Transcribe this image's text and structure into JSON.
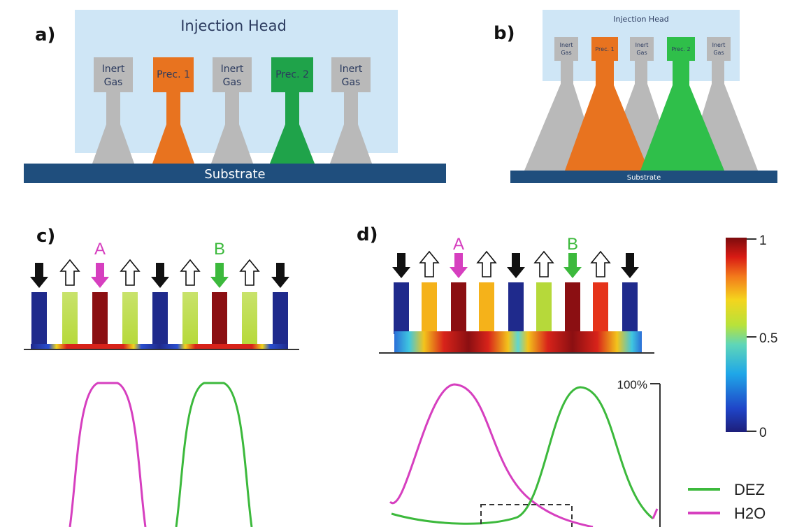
{
  "panels": {
    "a": {
      "tag": "a)",
      "head_label": "Injection Head",
      "substrate_label": "Substrate",
      "inlets": [
        {
          "line1": "Inert",
          "line2": "Gas",
          "kind": "inert"
        },
        {
          "line1": "Prec. 1",
          "line2": "",
          "kind": "prec1"
        },
        {
          "line1": "Inert",
          "line2": "Gas",
          "kind": "inert"
        },
        {
          "line1": "Prec. 2",
          "line2": "",
          "kind": "prec2"
        },
        {
          "line1": "Inert",
          "line2": "Gas",
          "kind": "inert"
        }
      ]
    },
    "b": {
      "tag": "b)",
      "head_label": "Injection Head",
      "substrate_label": "Substrate",
      "inlets": [
        {
          "line1": "Inert",
          "line2": "Gas",
          "kind": "inert"
        },
        {
          "line1": "Prec. 1",
          "line2": "",
          "kind": "prec1"
        },
        {
          "line1": "Inert",
          "line2": "Gas",
          "kind": "inert"
        },
        {
          "line1": "Prec. 2",
          "line2": "",
          "kind": "prec2"
        },
        {
          "line1": "Inert",
          "line2": "Gas",
          "kind": "inert"
        }
      ]
    },
    "c": {
      "tag": "c)",
      "label_a": "A",
      "label_b": "B"
    },
    "d": {
      "tag": "d)",
      "label_a": "A",
      "label_b": "B",
      "axis_top_label": "100%"
    }
  },
  "colorbar": {
    "tick_top": "1",
    "tick_mid": "0.5",
    "tick_bottom": "0"
  },
  "legend": {
    "items": [
      {
        "label": "DEZ",
        "color": "#3cb93c"
      },
      {
        "label": "H2O",
        "color": "#d63fbf"
      }
    ]
  },
  "colors": {
    "head": "#cfe6f6",
    "substrate": "#1f4e7d",
    "inert": "#b9b9b9",
    "prec1": "#e8731f",
    "prec2": "#1fa34a",
    "prec2_light": "#2fbf4a",
    "arrow_a": "#d63fbf",
    "arrow_b": "#3cb93c",
    "channel_blue": "#1f2a8c",
    "channel_red": "#8b0f12",
    "channel_lime": "#b6d93a",
    "channel_orange": "#f5b21a",
    "channel_bright_red": "#e5331a"
  }
}
